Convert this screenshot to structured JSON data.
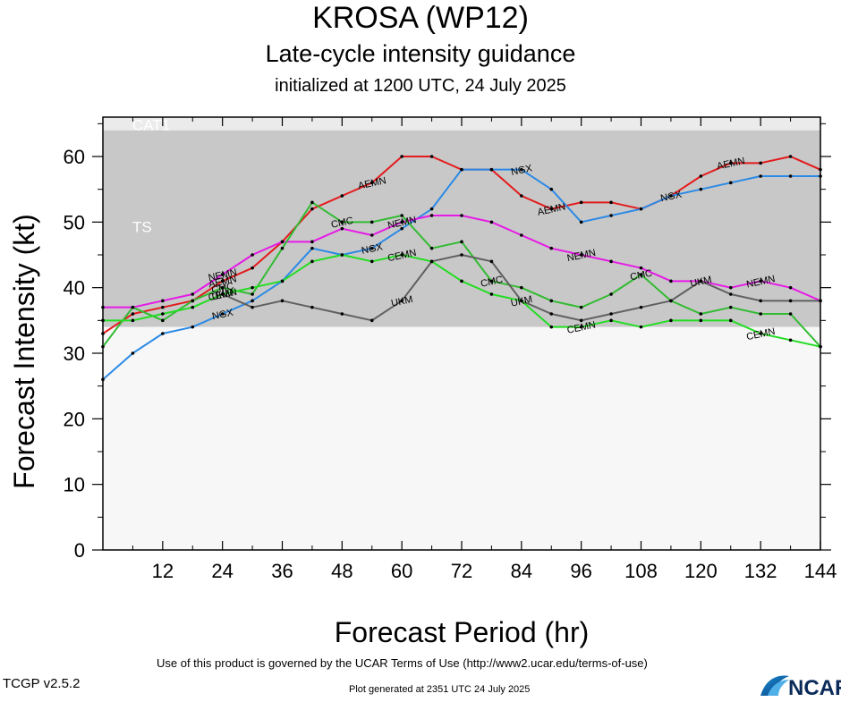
{
  "header": {
    "title": "KROSA (WP12)",
    "subtitle": "Late-cycle intensity guidance",
    "initialized": "initialized at 1200 UTC, 24 July 2025"
  },
  "footer": {
    "terms": "Use of this product is governed by the UCAR Terms of Use (http://www2.ucar.edu/terms-of-use)",
    "version": "TCGP v2.5.2",
    "generated": "Plot generated at 2351 UTC   24 July 2025",
    "logo_text": "NCAR"
  },
  "chart_data": {
    "type": "line",
    "xlabel": "Forecast Period (hr)",
    "ylabel": "Forecast Intensity (kt)",
    "xlim": [
      0,
      144
    ],
    "ylim": [
      0,
      66
    ],
    "xticks": [
      12,
      24,
      36,
      48,
      60,
      72,
      84,
      96,
      108,
      120,
      132,
      144
    ],
    "yticks": [
      0,
      10,
      20,
      30,
      40,
      50,
      60
    ],
    "bands": [
      {
        "name": "TS",
        "from": 34,
        "to": 64,
        "color": "#c8c8c8"
      },
      {
        "name": "CAT1",
        "from": 64,
        "to": 66,
        "color": "#ebebeb"
      },
      {
        "name": "",
        "from": 0,
        "to": 34,
        "color": "#f7f7f7"
      }
    ],
    "series": [
      {
        "name": "AEMN",
        "color": "#e41a1c",
        "x": [
          0,
          6,
          12,
          18,
          24,
          30,
          36,
          42,
          48,
          54,
          60,
          66,
          72,
          78,
          84,
          90,
          96,
          102,
          108,
          114,
          120,
          126,
          132,
          138,
          144
        ],
        "y": [
          33,
          36,
          37,
          38,
          41,
          43,
          47,
          52,
          54,
          56,
          60,
          60,
          58,
          58,
          54,
          52,
          53,
          53,
          52,
          54,
          57,
          59,
          59,
          60,
          58
        ],
        "labels": [
          [
            24,
            41
          ],
          [
            54,
            56
          ],
          [
            90,
            52
          ],
          [
            126,
            59
          ]
        ]
      },
      {
        "name": "NGX",
        "color": "#2b8ae6",
        "x": [
          0,
          6,
          12,
          18,
          24,
          30,
          36,
          42,
          48,
          54,
          60,
          66,
          72,
          78,
          84,
          90,
          96,
          102,
          108,
          114,
          120,
          126,
          132,
          138,
          144
        ],
        "y": [
          26,
          30,
          33,
          34,
          36,
          38,
          41,
          46,
          45,
          46,
          49,
          52,
          58,
          58,
          58,
          55,
          50,
          51,
          52,
          54,
          55,
          56,
          57,
          57,
          57
        ],
        "labels": [
          [
            24,
            36
          ],
          [
            54,
            46
          ],
          [
            84,
            58
          ],
          [
            114,
            54
          ]
        ]
      },
      {
        "name": "NEMN",
        "color": "#e619e6",
        "x": [
          0,
          6,
          12,
          18,
          24,
          30,
          36,
          42,
          48,
          54,
          60,
          66,
          72,
          78,
          84,
          90,
          96,
          102,
          108,
          114,
          120,
          126,
          132,
          138,
          144
        ],
        "y": [
          37,
          37,
          38,
          39,
          42,
          45,
          47,
          47,
          49,
          48,
          50,
          51,
          51,
          50,
          48,
          46,
          45,
          44,
          43,
          41,
          41,
          40,
          41,
          40,
          38
        ],
        "labels": [
          [
            24,
            42
          ],
          [
            60,
            50
          ],
          [
            96,
            45
          ],
          [
            132,
            41
          ]
        ]
      },
      {
        "name": "CMC",
        "color": "#33bb33",
        "x": [
          0,
          6,
          12,
          18,
          24,
          30,
          36,
          42,
          48,
          54,
          60,
          66,
          72,
          78,
          84,
          90,
          96,
          102,
          108,
          114,
          120,
          126,
          132,
          138,
          144
        ],
        "y": [
          31,
          37,
          35,
          38,
          40,
          39,
          46,
          53,
          50,
          50,
          51,
          46,
          47,
          41,
          40,
          38,
          37,
          39,
          42,
          38,
          36,
          37,
          36,
          36,
          31
        ],
        "labels": [
          [
            24,
            40
          ],
          [
            48,
            50
          ],
          [
            78,
            41
          ],
          [
            108,
            42
          ]
        ]
      },
      {
        "name": "UKM",
        "color": "#606060",
        "x": [
          24,
          30,
          36,
          42,
          48,
          54,
          60,
          66,
          72,
          78,
          84,
          90,
          96,
          102,
          108,
          114,
          120,
          126,
          132,
          138,
          144
        ],
        "y": [
          39,
          37,
          38,
          37,
          36,
          35,
          38,
          44,
          45,
          44,
          38,
          36,
          35,
          36,
          37,
          38,
          41,
          39,
          38,
          38,
          38
        ],
        "labels": [
          [
            24,
            39
          ],
          [
            60,
            38
          ],
          [
            84,
            38
          ],
          [
            120,
            41
          ]
        ]
      },
      {
        "name": "CEMN",
        "color": "#22dd22",
        "x": [
          0,
          6,
          12,
          18,
          24,
          30,
          36,
          42,
          48,
          54,
          60,
          66,
          72,
          78,
          84,
          90,
          96,
          102,
          108,
          114,
          120,
          126,
          132,
          138,
          144
        ],
        "y": [
          35,
          35,
          36,
          37,
          39,
          40,
          41,
          44,
          45,
          44,
          45,
          44,
          41,
          39,
          38,
          34,
          34,
          35,
          34,
          35,
          35,
          35,
          33,
          32,
          31
        ],
        "labels": [
          [
            24,
            39
          ],
          [
            60,
            45
          ],
          [
            96,
            34
          ],
          [
            132,
            33
          ]
        ]
      }
    ]
  }
}
